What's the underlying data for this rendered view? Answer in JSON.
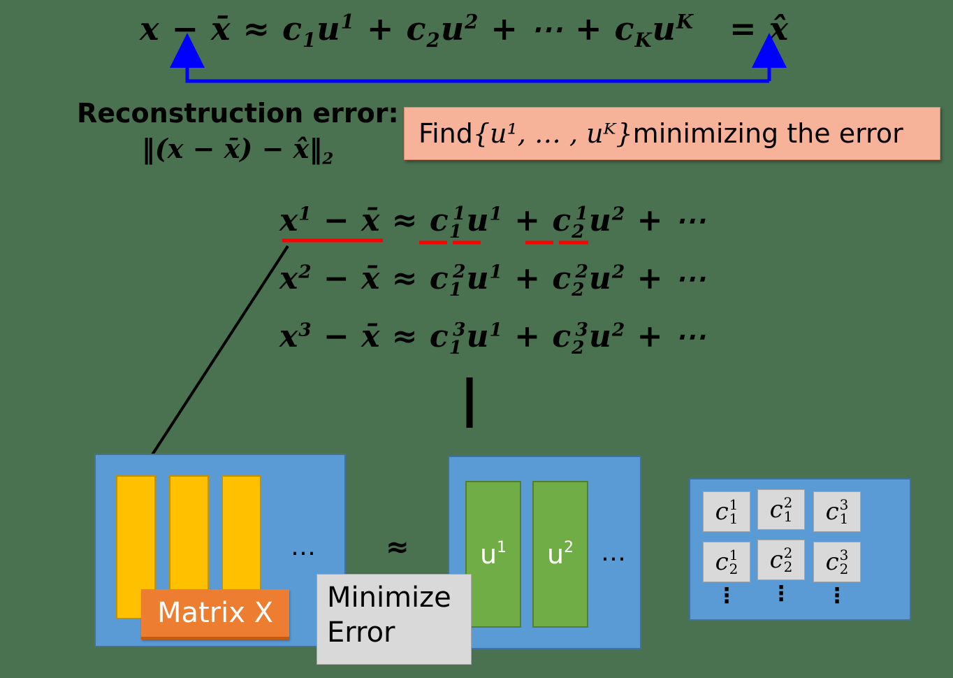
{
  "top_equation": {
    "x": "x",
    "minus": "−",
    "xbar": "x̄",
    "approx": "≈",
    "c1": "c",
    "c1_sub": "1",
    "u1": "u",
    "u1_sup": "1",
    "plus1": "+",
    "c2": "c",
    "c2_sub": "2",
    "u2": "u",
    "u2_sup": "2",
    "plus2": "+",
    "dots": "⋯",
    "plus3": "+",
    "cK": "c",
    "cK_sub": "K",
    "uK": "u",
    "uK_sup": "K",
    "eq": "=",
    "xhat": "x̂"
  },
  "reconstruction_label": {
    "line1": "Reconstruction error:",
    "line2": "‖(x − x̄) − x̂‖",
    "line2_sub": "2"
  },
  "find_box": {
    "prefix": "Find ",
    "set": "{u¹, … , uᴷ}",
    "suffix": " minimizing the error"
  },
  "equations": [
    {
      "lhs": "x",
      "lhs_sup": "1",
      "minus": "−",
      "xbar": "x̄",
      "approx": "≈",
      "c_a": "c",
      "c_a_sup": "1",
      "c_a_sub": "1",
      "u_a": "u",
      "u_a_sup": "1",
      "plus": "+",
      "c_b": "c",
      "c_b_sup": "1",
      "c_b_sub": "2",
      "u_b": "u",
      "u_b_sup": "2",
      "tail": "+ ⋯"
    },
    {
      "lhs": "x",
      "lhs_sup": "2",
      "minus": "−",
      "xbar": "x̄",
      "approx": "≈",
      "c_a": "c",
      "c_a_sup": "2",
      "c_a_sub": "1",
      "u_a": "u",
      "u_a_sup": "1",
      "plus": "+",
      "c_b": "c",
      "c_b_sup": "2",
      "c_b_sub": "2",
      "u_b": "u",
      "u_b_sup": "2",
      "tail": "+ ⋯"
    },
    {
      "lhs": "x",
      "lhs_sup": "3",
      "minus": "−",
      "xbar": "x̄",
      "approx": "≈",
      "c_a": "c",
      "c_a_sup": "3",
      "c_a_sub": "1",
      "u_a": "u",
      "u_a_sup": "1",
      "plus": "+",
      "c_b": "c",
      "c_b_sup": "3",
      "c_b_sub": "2",
      "u_b": "u",
      "u_b_sup": "2",
      "tail": "+ ⋯"
    }
  ],
  "vertical_dots": "⋮",
  "matrix_x": {
    "label": "Matrix X",
    "ellipsis": "…"
  },
  "approx_symbol": "≈",
  "minimize_box": {
    "line1": "Minimize",
    "line2": "Error"
  },
  "u_matrix": {
    "col1": "u",
    "col1_sup": "1",
    "col2": "u",
    "col2_sup": "2",
    "ellipsis": "…"
  },
  "c_matrix": {
    "cells": [
      {
        "c": "c",
        "sup": "1",
        "sub": "1"
      },
      {
        "c": "c",
        "sup": "2",
        "sub": "1"
      },
      {
        "c": "c",
        "sup": "3",
        "sub": "1"
      },
      {
        "c": "c",
        "sup": "1",
        "sub": "2"
      },
      {
        "c": "c",
        "sup": "2",
        "sub": "2"
      },
      {
        "c": "c",
        "sup": "3",
        "sub": "2"
      }
    ],
    "vdots": "⋮"
  },
  "colors": {
    "background": "#4a7150",
    "panel": "#5b9bd5",
    "yellow": "#ffc000",
    "green": "#70ad47",
    "orange": "#ed7d31",
    "gray": "#d9d9d9",
    "find_box": "#f7b39a",
    "arrow_blue": "#0000ff",
    "underline_red": "#ff0000"
  }
}
